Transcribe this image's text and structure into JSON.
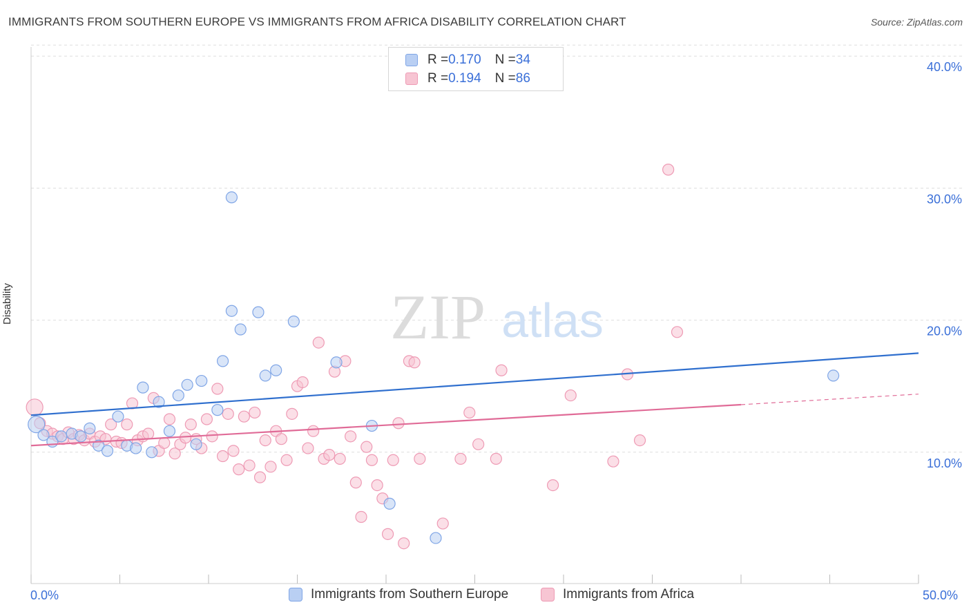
{
  "header": {
    "title": "IMMIGRANTS FROM SOUTHERN EUROPE VS IMMIGRANTS FROM AFRICA DISABILITY CORRELATION CHART",
    "source": "Source: ZipAtlas.com"
  },
  "legend_top": {
    "rows": [
      {
        "r_label": "R = ",
        "r_value": "0.170",
        "n_label": "N = ",
        "n_value": "34"
      },
      {
        "r_label": "R = ",
        "r_value": "0.194",
        "n_label": "N = ",
        "n_value": "86"
      }
    ]
  },
  "watermark": {
    "zip": "ZIP",
    "atlas": "atlas"
  },
  "colors": {
    "series_blue_fill": "#b9cff3",
    "series_blue_stroke": "#7fa5e6",
    "series_blue_line": "#2f6fce",
    "series_pink_fill": "#f7c5d3",
    "series_pink_stroke": "#ee9ab4",
    "series_pink_line": "#e06b97",
    "axis_label": "#3a6fd8",
    "grid": "#dddddd"
  },
  "chart_data": {
    "type": "scatter",
    "title": "IMMIGRANTS FROM SOUTHERN EUROPE VS IMMIGRANTS FROM AFRICA DISABILITY CORRELATION CHART",
    "xlabel": "",
    "ylabel": "Disability",
    "xlim": [
      0,
      50
    ],
    "ylim": [
      0,
      40
    ],
    "x_tick_labels": [
      "0.0%",
      "50.0%"
    ],
    "y_ticks": [
      10,
      20,
      30,
      40
    ],
    "y_tick_labels": [
      "10.0%",
      "20.0%",
      "30.0%",
      "40.0%"
    ],
    "grid": true,
    "legend_position": "bottom",
    "series": [
      {
        "name": "Immigrants from Southern Europe",
        "color": "#7fa5e6",
        "trend": {
          "x0": 0,
          "y0": 12.8,
          "x1": 50,
          "y1": 17.5
        },
        "points": [
          [
            0.3,
            12.1
          ],
          [
            0.7,
            11.3
          ],
          [
            1.2,
            10.8
          ],
          [
            1.7,
            11.2
          ],
          [
            2.3,
            11.4
          ],
          [
            2.8,
            11.2
          ],
          [
            3.3,
            11.8
          ],
          [
            3.8,
            10.5
          ],
          [
            4.3,
            10.1
          ],
          [
            4.9,
            12.7
          ],
          [
            5.4,
            10.5
          ],
          [
            5.9,
            10.3
          ],
          [
            6.3,
            14.9
          ],
          [
            6.8,
            10.0
          ],
          [
            7.2,
            13.8
          ],
          [
            7.8,
            11.6
          ],
          [
            8.3,
            14.3
          ],
          [
            8.8,
            15.1
          ],
          [
            9.3,
            10.6
          ],
          [
            9.6,
            15.4
          ],
          [
            10.5,
            13.2
          ],
          [
            10.8,
            16.9
          ],
          [
            11.3,
            29.3
          ],
          [
            11.3,
            20.7
          ],
          [
            11.8,
            19.3
          ],
          [
            12.8,
            20.6
          ],
          [
            13.2,
            15.8
          ],
          [
            14.8,
            19.9
          ],
          [
            13.8,
            16.2
          ],
          [
            17.2,
            16.8
          ],
          [
            19.2,
            12.0
          ],
          [
            20.2,
            6.1
          ],
          [
            22.8,
            3.5
          ],
          [
            45.2,
            15.8
          ]
        ]
      },
      {
        "name": "Immigrants from Africa",
        "color": "#ee9ab4",
        "trend": {
          "x0": 0,
          "y0": 10.5,
          "x1": 40,
          "y1": 13.6
        },
        "trend_dashed": {
          "x0": 40,
          "y0": 13.6,
          "x1": 50,
          "y1": 14.4
        },
        "points": [
          [
            0.2,
            13.4
          ],
          [
            0.5,
            12.2
          ],
          [
            0.9,
            11.6
          ],
          [
            1.2,
            11.4
          ],
          [
            1.5,
            11.2
          ],
          [
            1.8,
            11.0
          ],
          [
            2.1,
            11.5
          ],
          [
            2.4,
            11.0
          ],
          [
            2.7,
            11.3
          ],
          [
            3.0,
            10.9
          ],
          [
            3.3,
            11.4
          ],
          [
            3.6,
            10.8
          ],
          [
            3.9,
            11.2
          ],
          [
            4.2,
            11.0
          ],
          [
            4.5,
            12.1
          ],
          [
            4.8,
            10.8
          ],
          [
            5.1,
            10.7
          ],
          [
            5.4,
            12.1
          ],
          [
            5.7,
            13.7
          ],
          [
            6.0,
            10.9
          ],
          [
            6.3,
            11.2
          ],
          [
            6.6,
            11.4
          ],
          [
            6.9,
            14.1
          ],
          [
            7.2,
            10.1
          ],
          [
            7.5,
            10.7
          ],
          [
            7.8,
            12.5
          ],
          [
            8.1,
            9.9
          ],
          [
            8.4,
            10.6
          ],
          [
            8.7,
            11.1
          ],
          [
            9.0,
            12.1
          ],
          [
            9.3,
            11.0
          ],
          [
            9.6,
            10.3
          ],
          [
            9.9,
            12.5
          ],
          [
            10.2,
            11.2
          ],
          [
            10.5,
            14.8
          ],
          [
            10.8,
            9.7
          ],
          [
            11.1,
            12.9
          ],
          [
            11.4,
            10.1
          ],
          [
            11.7,
            8.7
          ],
          [
            12.0,
            12.7
          ],
          [
            12.3,
            9.0
          ],
          [
            12.6,
            13.0
          ],
          [
            12.9,
            8.1
          ],
          [
            13.2,
            10.9
          ],
          [
            13.5,
            8.9
          ],
          [
            13.8,
            11.6
          ],
          [
            14.1,
            11.0
          ],
          [
            14.4,
            9.4
          ],
          [
            14.7,
            12.9
          ],
          [
            15.0,
            15.0
          ],
          [
            15.3,
            15.3
          ],
          [
            15.6,
            10.3
          ],
          [
            15.9,
            11.6
          ],
          [
            16.2,
            18.3
          ],
          [
            16.5,
            9.5
          ],
          [
            16.8,
            9.8
          ],
          [
            17.1,
            16.1
          ],
          [
            17.4,
            9.5
          ],
          [
            17.7,
            16.9
          ],
          [
            18.0,
            11.2
          ],
          [
            18.3,
            7.7
          ],
          [
            18.6,
            5.1
          ],
          [
            18.9,
            10.4
          ],
          [
            19.2,
            9.4
          ],
          [
            19.5,
            7.5
          ],
          [
            19.8,
            6.5
          ],
          [
            20.1,
            3.8
          ],
          [
            20.4,
            9.4
          ],
          [
            20.7,
            12.2
          ],
          [
            21.0,
            3.1
          ],
          [
            21.3,
            16.9
          ],
          [
            21.6,
            16.8
          ],
          [
            21.9,
            9.5
          ],
          [
            23.2,
            4.6
          ],
          [
            24.2,
            9.5
          ],
          [
            24.7,
            13.0
          ],
          [
            25.2,
            10.6
          ],
          [
            26.2,
            9.5
          ],
          [
            26.5,
            16.2
          ],
          [
            29.4,
            7.5
          ],
          [
            30.4,
            14.3
          ],
          [
            32.8,
            9.3
          ],
          [
            33.6,
            15.9
          ],
          [
            34.3,
            10.9
          ],
          [
            35.9,
            31.4
          ],
          [
            36.4,
            19.1
          ]
        ]
      }
    ]
  }
}
